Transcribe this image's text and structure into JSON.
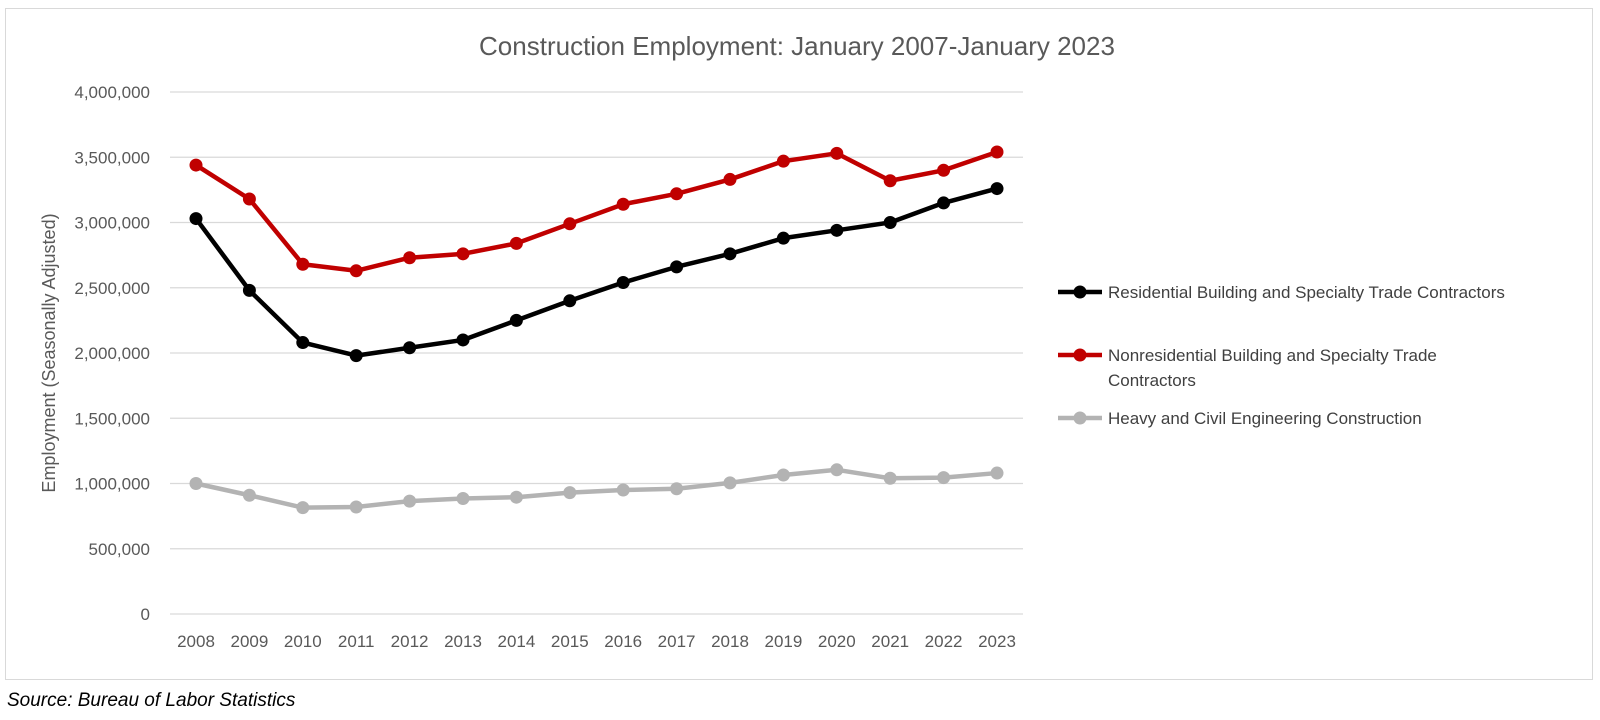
{
  "colors": {
    "residential": "#000000",
    "nonresidential": "#c00000",
    "heavy_civil": "#b3b3b3",
    "gridline": "#d9d9d9",
    "text": "#595959"
  },
  "chart_data": {
    "type": "line",
    "title": "Construction Employment: January 2007-January 2023",
    "xlabel": "",
    "ylabel": "Employment (Seasonally Adjusted)",
    "ylim": [
      0,
      4000000
    ],
    "yticks": [
      0,
      500000,
      1000000,
      1500000,
      2000000,
      2500000,
      3000000,
      3500000,
      4000000
    ],
    "ytick_labels": [
      "0",
      "500,000",
      "1,000,000",
      "1,500,000",
      "2,000,000",
      "2,500,000",
      "3,000,000",
      "3,500,000",
      "4,000,000"
    ],
    "categories": [
      "2008",
      "2009",
      "2010",
      "2011",
      "2012",
      "2013",
      "2014",
      "2015",
      "2016",
      "2017",
      "2018",
      "2019",
      "2020",
      "2021",
      "2022",
      "2023"
    ],
    "grid": true,
    "legend_position": "right",
    "series": [
      {
        "name": "Residential Building and Specialty Trade Contractors",
        "legend_lines": [
          "Residential Building and Specialty Trade Contractors"
        ],
        "color_key": "residential",
        "values": [
          3030000,
          2480000,
          2080000,
          1980000,
          2040000,
          2100000,
          2250000,
          2400000,
          2540000,
          2660000,
          2760000,
          2880000,
          2940000,
          3000000,
          3150000,
          3260000
        ]
      },
      {
        "name": "Nonresidential Building and Specialty Trade Contractors",
        "legend_lines": [
          "Nonresidential Building and Specialty Trade",
          "Contractors"
        ],
        "color_key": "nonresidential",
        "values": [
          3440000,
          3180000,
          2680000,
          2630000,
          2730000,
          2760000,
          2840000,
          2990000,
          3140000,
          3220000,
          3330000,
          3470000,
          3530000,
          3320000,
          3400000,
          3540000
        ]
      },
      {
        "name": "Heavy and Civil Engineering Construction",
        "legend_lines": [
          "Heavy and Civil Engineering Construction"
        ],
        "color_key": "heavy_civil",
        "values": [
          1000000,
          910000,
          815000,
          820000,
          865000,
          885000,
          895000,
          930000,
          950000,
          960000,
          1005000,
          1065000,
          1105000,
          1040000,
          1045000,
          1080000
        ]
      }
    ]
  },
  "source_note": "Source: Bureau of Labor Statistics"
}
